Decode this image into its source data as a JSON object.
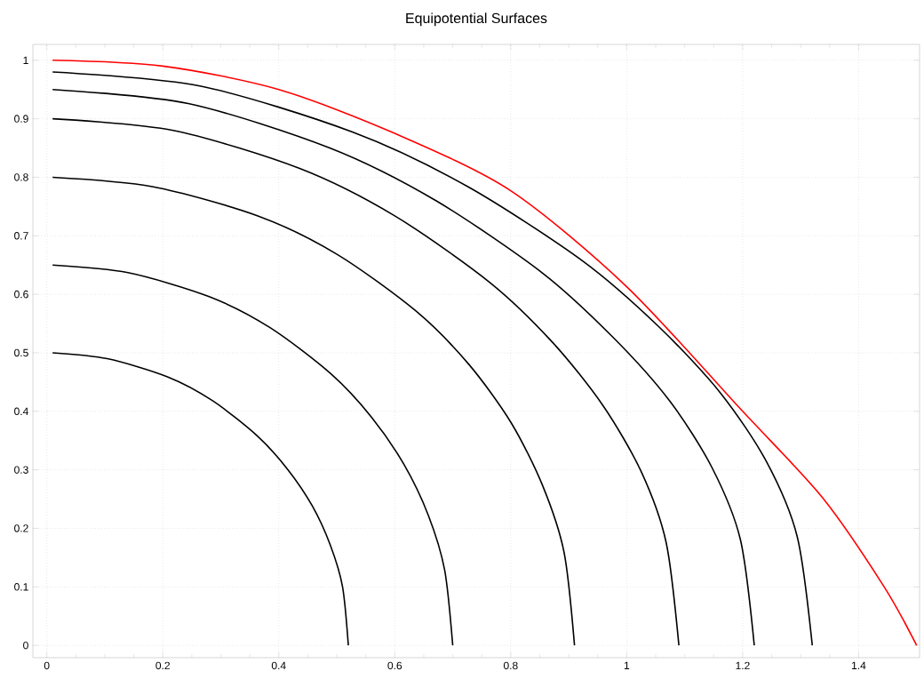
{
  "chart_data": {
    "type": "line",
    "title": "Equipotential Surfaces",
    "xlim": [
      -0.024,
      1.505
    ],
    "ylim": [
      -0.021,
      1.027
    ],
    "xticks": [
      0,
      0.2,
      0.4,
      0.6,
      0.8,
      1,
      1.2,
      1.4
    ],
    "yticks": [
      0,
      0.1,
      0.2,
      0.3,
      0.4,
      0.5,
      0.6,
      0.7,
      0.8,
      0.9,
      1
    ],
    "grid": true,
    "marker": "none",
    "line_style": "solid",
    "series": [
      {
        "color": "#000000",
        "x": [
          0.01,
          0.104,
          0.208,
          0.286,
          0.364,
          0.416,
          0.458,
          0.489,
          0.51,
          0.52
        ],
        "values": [
          0.5,
          0.49,
          0.459,
          0.418,
          0.357,
          0.3,
          0.238,
          0.171,
          0.1,
          0
        ]
      },
      {
        "color": "#000000",
        "x": [
          0.01,
          0.14,
          0.28,
          0.385,
          0.49,
          0.56,
          0.616,
          0.658,
          0.686,
          0.7
        ],
        "values": [
          0.65,
          0.637,
          0.596,
          0.543,
          0.464,
          0.39,
          0.309,
          0.222,
          0.129,
          0
        ]
      },
      {
        "color": "#000000",
        "x": [
          0.01,
          0.182,
          0.364,
          0.501,
          0.637,
          0.728,
          0.801,
          0.855,
          0.892,
          0.91
        ],
        "values": [
          0.8,
          0.784,
          0.734,
          0.668,
          0.571,
          0.48,
          0.38,
          0.273,
          0.159,
          0
        ]
      },
      {
        "color": "#000000",
        "x": [
          0.01,
          0.218,
          0.436,
          0.6,
          0.763,
          0.872,
          0.959,
          1.025,
          1.068,
          1.09
        ],
        "values": [
          0.9,
          0.88,
          0.815,
          0.734,
          0.621,
          0.518,
          0.41,
          0.297,
          0.176,
          0
        ]
      },
      {
        "color": "#000000",
        "x": [
          0.01,
          0.244,
          0.488,
          0.671,
          0.854,
          0.976,
          1.074,
          1.147,
          1.196,
          1.22
        ],
        "values": [
          0.95,
          0.926,
          0.85,
          0.76,
          0.637,
          0.527,
          0.418,
          0.304,
          0.181,
          0
        ]
      },
      {
        "color": "#000000",
        "x": [
          0.01,
          0.264,
          0.528,
          0.726,
          0.924,
          1.056,
          1.162,
          1.241,
          1.294,
          1.32
        ],
        "values": [
          0.98,
          0.956,
          0.877,
          0.784,
          0.657,
          0.544,
          0.431,
          0.314,
          0.186,
          0
        ]
      },
      {
        "color": "#ff0000",
        "x": [
          0.01,
          0.2,
          0.4,
          0.6,
          0.8,
          1.0,
          1.2,
          1.338,
          1.444,
          1.5
        ],
        "values": [
          1.0,
          0.99,
          0.95,
          0.875,
          0.777,
          0.613,
          0.4,
          0.252,
          0.1,
          0
        ]
      }
    ]
  }
}
